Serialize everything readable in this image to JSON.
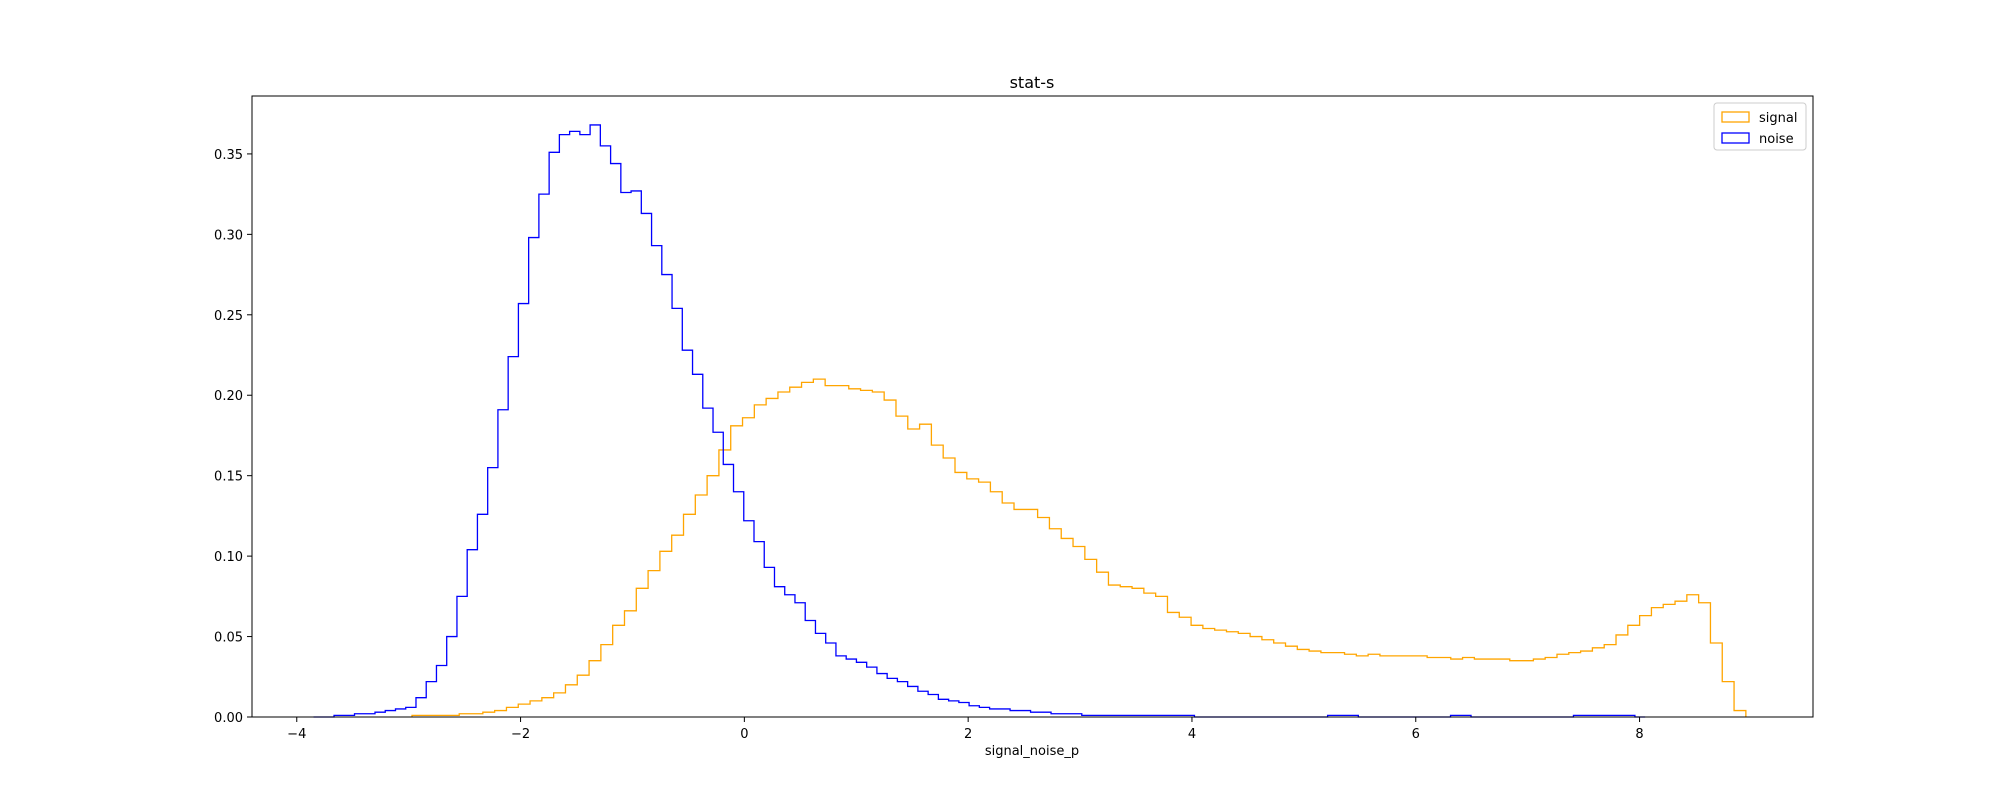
{
  "chart_data": {
    "type": "histogram-step",
    "title": "stat-s",
    "xlabel": "signal_noise_p",
    "ylabel": "",
    "xlim": [
      -4.4,
      9.55
    ],
    "ylim": [
      0,
      0.386
    ],
    "xticks": [
      -4,
      -2,
      0,
      2,
      4,
      6,
      8
    ],
    "xtick_labels": [
      "−4",
      "−2",
      "0",
      "2",
      "4",
      "6",
      "8"
    ],
    "yticks": [
      0.0,
      0.05,
      0.1,
      0.15,
      0.2,
      0.25,
      0.3,
      0.35
    ],
    "ytick_labels": [
      "0.00",
      "0.05",
      "0.10",
      "0.15",
      "0.20",
      "0.25",
      "0.30",
      "0.35"
    ],
    "grid": false,
    "legend_position": "top-right",
    "series": [
      {
        "name": "signal",
        "color": "#ffa500",
        "edges": [
          -2.97,
          8.95
        ],
        "values": [
          0.001,
          0.001,
          0.001,
          0.001,
          0.002,
          0.002,
          0.003,
          0.004,
          0.006,
          0.008,
          0.01,
          0.012,
          0.015,
          0.02,
          0.026,
          0.035,
          0.045,
          0.057,
          0.066,
          0.08,
          0.091,
          0.103,
          0.113,
          0.126,
          0.138,
          0.15,
          0.166,
          0.181,
          0.186,
          0.194,
          0.198,
          0.202,
          0.205,
          0.208,
          0.21,
          0.206,
          0.206,
          0.204,
          0.203,
          0.202,
          0.197,
          0.187,
          0.179,
          0.182,
          0.169,
          0.161,
          0.152,
          0.148,
          0.146,
          0.14,
          0.133,
          0.129,
          0.129,
          0.124,
          0.117,
          0.111,
          0.106,
          0.098,
          0.09,
          0.082,
          0.081,
          0.08,
          0.077,
          0.075,
          0.065,
          0.062,
          0.057,
          0.055,
          0.054,
          0.053,
          0.052,
          0.05,
          0.048,
          0.046,
          0.044,
          0.042,
          0.041,
          0.04,
          0.04,
          0.039,
          0.038,
          0.039,
          0.038,
          0.038,
          0.038,
          0.038,
          0.037,
          0.037,
          0.036,
          0.037,
          0.036,
          0.036,
          0.036,
          0.035,
          0.035,
          0.036,
          0.037,
          0.039,
          0.04,
          0.041,
          0.043,
          0.045,
          0.051,
          0.057,
          0.063,
          0.068,
          0.07,
          0.072,
          0.076,
          0.071,
          0.046,
          0.022,
          0.004
        ]
      },
      {
        "name": "noise",
        "color": "#0000ff",
        "edges": [
          -3.85,
          8.05
        ],
        "values": [
          0.0,
          0.0,
          0.001,
          0.001,
          0.002,
          0.002,
          0.003,
          0.004,
          0.005,
          0.006,
          0.012,
          0.022,
          0.032,
          0.05,
          0.075,
          0.104,
          0.126,
          0.155,
          0.191,
          0.224,
          0.257,
          0.298,
          0.325,
          0.351,
          0.362,
          0.364,
          0.362,
          0.368,
          0.355,
          0.344,
          0.326,
          0.327,
          0.313,
          0.293,
          0.275,
          0.254,
          0.228,
          0.213,
          0.192,
          0.177,
          0.157,
          0.14,
          0.122,
          0.109,
          0.093,
          0.081,
          0.076,
          0.071,
          0.06,
          0.052,
          0.046,
          0.038,
          0.036,
          0.034,
          0.031,
          0.027,
          0.024,
          0.022,
          0.019,
          0.016,
          0.014,
          0.011,
          0.01,
          0.009,
          0.007,
          0.006,
          0.005,
          0.005,
          0.004,
          0.004,
          0.003,
          0.003,
          0.002,
          0.002,
          0.002,
          0.001,
          0.001,
          0.001,
          0.001,
          0.001,
          0.001,
          0.001,
          0.001,
          0.001,
          0.001,
          0.001,
          0.0,
          0.0,
          0.0,
          0.0,
          0.0,
          0.0,
          0.0,
          0.0,
          0.0,
          0.0,
          0.0,
          0.0,
          0.0,
          0.001,
          0.001,
          0.001,
          0.0,
          0.0,
          0.0,
          0.0,
          0.0,
          0.0,
          0.0,
          0.0,
          0.0,
          0.001,
          0.001,
          0.0,
          0.0,
          0.0,
          0.0,
          0.0,
          0.0,
          0.0,
          0.0,
          0.0,
          0.0,
          0.001,
          0.001,
          0.001,
          0.001,
          0.001,
          0.001,
          0.0
        ]
      }
    ]
  }
}
